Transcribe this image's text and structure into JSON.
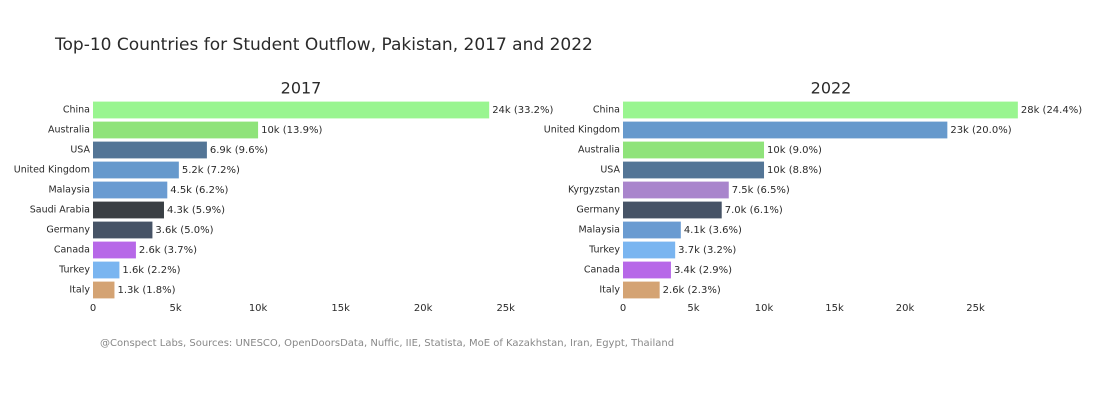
{
  "title": "Top-10 Countries for Student Outflow, Pakistan, 2017 and 2022",
  "source": "@Conspect Labs, Sources: UNESCO, OpenDoorsData, Nuffic, IIE, Statista, MoE of Kazakhstan, Iran, Egypt, Thailand",
  "chart_data": [
    {
      "type": "bar",
      "orientation": "horizontal",
      "title": "2017",
      "categories": [
        "China",
        "Australia",
        "USA",
        "United Kingdom",
        "Malaysia",
        "Saudi Arabia",
        "Germany",
        "Canada",
        "Turkey",
        "Italy"
      ],
      "values": [
        24000,
        10000,
        6900,
        5200,
        4500,
        4300,
        3600,
        2600,
        1600,
        1300
      ],
      "value_labels": [
        "24k (33.2%)",
        "10k (13.9%)",
        "6.9k (9.6%)",
        "5.2k (7.2%)",
        "4.5k (6.2%)",
        "4.3k (5.9%)",
        "3.6k (5.0%)",
        "2.6k (3.7%)",
        "1.6k (2.2%)",
        "1.3k (1.8%)"
      ],
      "colors": [
        "#99f590",
        "#8fe37a",
        "#537596",
        "#6699cc",
        "#6a9bd1",
        "#3a3f44",
        "#465366",
        "#b768e8",
        "#7ab5f0",
        "#d4a373"
      ],
      "xlim": [
        0,
        25200
      ],
      "xticks": [
        0,
        {
          "value": 5000,
          "label": "5k"
        },
        {
          "value": 10000,
          "label": "10k"
        },
        {
          "value": 15000,
          "label": "15k"
        },
        {
          "value": 20000,
          "label": "20k"
        },
        {
          "value": 25000,
          "label": "25k"
        }
      ]
    },
    {
      "type": "bar",
      "orientation": "horizontal",
      "title": "2022",
      "categories": [
        "China",
        "United Kingdom",
        "Australia",
        "USA",
        "Kyrgyzstan",
        "Germany",
        "Malaysia",
        "Turkey",
        "Canada",
        "Italy"
      ],
      "values": [
        28000,
        23000,
        10000,
        10000,
        7500,
        7000,
        4100,
        3700,
        3400,
        2600
      ],
      "value_labels": [
        "28k (24.4%)",
        "23k (20.0%)",
        "10k (9.0%)",
        "10k (8.8%)",
        "7.5k (6.5%)",
        "7.0k (6.1%)",
        "4.1k (3.6%)",
        "3.7k (3.2%)",
        "3.4k (2.9%)",
        "2.6k (2.3%)"
      ],
      "colors": [
        "#99f590",
        "#6699cc",
        "#8fe37a",
        "#537596",
        "#a985cc",
        "#465366",
        "#6a9bd1",
        "#7ab5f0",
        "#b768e8",
        "#d4a373"
      ],
      "xlim": [
        0,
        29500
      ],
      "xticks": [
        0,
        {
          "value": 5000,
          "label": "5k"
        },
        {
          "value": 10000,
          "label": "10k"
        },
        {
          "value": 15000,
          "label": "15k"
        },
        {
          "value": 20000,
          "label": "20k"
        },
        {
          "value": 25000,
          "label": "25k"
        }
      ]
    }
  ]
}
